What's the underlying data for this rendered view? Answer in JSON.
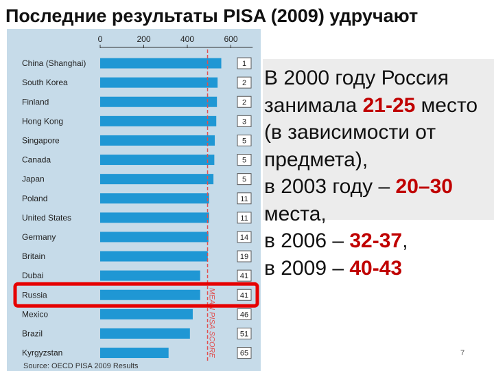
{
  "title": "Последние результаты PISA (2009) удручают",
  "chart_data": {
    "type": "bar",
    "orientation": "horizontal",
    "categories": [
      "China (Shanghai)",
      "South Korea",
      "Finland",
      "Hong Kong",
      "Singapore",
      "Canada",
      "Japan",
      "Poland",
      "United States",
      "Germany",
      "Britain",
      "Dubai",
      "Russia",
      "Mexico",
      "Brazil",
      "Kyrgyzstan"
    ],
    "values": [
      556,
      539,
      536,
      533,
      526,
      524,
      520,
      500,
      500,
      497,
      494,
      459,
      459,
      425,
      412,
      314
    ],
    "ranks": [
      "1",
      "2",
      "2",
      "3",
      "5",
      "5",
      "5",
      "11",
      "11",
      "14",
      "19",
      "41",
      "41",
      "46",
      "51",
      "65"
    ],
    "x_ticks": [
      "0",
      "200",
      "400",
      "600"
    ],
    "xlim": [
      0,
      700
    ],
    "mean_line_value": 493,
    "mean_line_label": "MEAN PISA SCORE",
    "highlighted_category": "Russia",
    "source": "Source: OECD PISA 2009 Results",
    "colors": {
      "bar": "#1f97d4",
      "mean_line": "#e05050",
      "highlight": "#e60000",
      "panel": "#c6dbe9"
    }
  },
  "bullets": {
    "line1": "В 2000 году Россия",
    "line2_pre": "занимала ",
    "line2_hl": "21-25",
    "line2_post": " место",
    "line3": "(в зависимости от",
    "line4": "предмета),",
    "line5_pre": "в 2003 году – ",
    "line5_hl": "20–30",
    "line6": "места,",
    "line7_pre": "в 2006 – ",
    "line7_hl": "32-37",
    "line7_post": ",",
    "line8_pre": "в 2009 – ",
    "line8_hl": "40-43"
  },
  "page_number": "7"
}
